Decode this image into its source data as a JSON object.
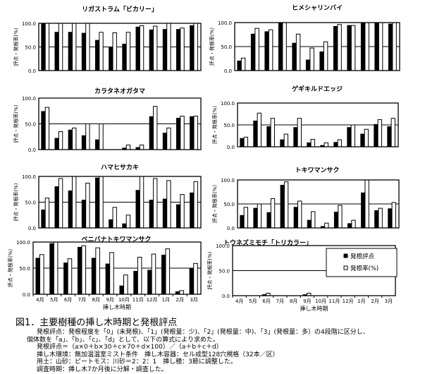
{
  "chart_data": [
    {
      "type": "bar",
      "title": "リガストラム「ビカリー」",
      "ylabel": "評点・発根率(%)",
      "xlabel": "",
      "ylim": [
        0,
        100
      ],
      "yticks": [
        "0.0",
        "50.0",
        "100.0"
      ],
      "categories": [
        "4月",
        "5月",
        "6月",
        "7月",
        "8月",
        "9月",
        "10月",
        "11月",
        "12月",
        "1月",
        "2月",
        "3月"
      ],
      "show_xticks": false,
      "series": [
        {
          "name": "発根評点",
          "values": [
            100,
            81,
            81,
            79,
            64,
            50,
            56,
            92,
            86,
            87,
            87,
            95
          ]
        },
        {
          "name": "発根率(%)",
          "values": [
            100,
            100,
            100,
            100,
            81,
            80,
            81,
            95,
            94,
            100,
            90,
            100
          ]
        }
      ]
    },
    {
      "type": "bar",
      "title": "ヒメシャリンバイ",
      "ylabel": "評点・発根率(%)",
      "xlabel": "",
      "ylim": [
        0,
        100
      ],
      "yticks": [
        "0.0",
        "50.0",
        "100.0"
      ],
      "categories": [
        "4月",
        "5月",
        "6月",
        "7月",
        "8月",
        "9月",
        "10月",
        "11月",
        "12月",
        "1月",
        "2月",
        "3月"
      ],
      "show_xticks": false,
      "series": [
        {
          "name": "発根評点",
          "values": [
            20,
            76,
            81,
            100,
            57,
            22,
            39,
            92,
            94,
            100,
            100,
            97
          ]
        },
        {
          "name": "発根率(%)",
          "values": [
            26,
            88,
            85,
            100,
            76,
            47,
            60,
            96,
            94,
            100,
            100,
            100
          ]
        }
      ]
    },
    {
      "type": "bar",
      "title": "カラタネオガタマ",
      "ylabel": "評点・発根率(%)",
      "xlabel": "",
      "ylim": [
        0,
        100
      ],
      "yticks": [
        "0.0",
        "50.0",
        "100.0"
      ],
      "categories": [
        "4月",
        "5月",
        "6月",
        "7月",
        "8月",
        "9月",
        "10月",
        "11月",
        "12月",
        "1月",
        "2月",
        "3月"
      ],
      "show_xticks": false,
      "series": [
        {
          "name": "発根評点",
          "values": [
            74,
            22,
            38,
            27,
            19,
            0,
            3,
            4,
            64,
            32,
            61,
            64
          ]
        },
        {
          "name": "発根率(%)",
          "values": [
            82,
            35,
            42,
            50,
            50,
            0,
            9,
            9,
            84,
            42,
            65,
            65
          ]
        }
      ]
    },
    {
      "type": "bar",
      "title": "ゲギキルドエッジ",
      "ylabel": "評点・発根率(%)",
      "xlabel": "",
      "ylim": [
        0,
        100
      ],
      "yticks": [
        "0.0",
        "50.0",
        "100.0"
      ],
      "categories": [
        "4月",
        "5月",
        "6月",
        "7月",
        "8月",
        "9月",
        "10月",
        "11月",
        "12月",
        "1月",
        "2月",
        "3月"
      ],
      "show_xticks": false,
      "series": [
        {
          "name": "発根評点",
          "values": [
            19,
            59,
            46,
            16,
            44,
            9,
            3,
            10,
            44,
            29,
            51,
            46
          ]
        },
        {
          "name": "発根率(%)",
          "values": [
            22,
            77,
            65,
            29,
            65,
            17,
            9,
            16,
            50,
            40,
            62,
            65
          ]
        }
      ]
    },
    {
      "type": "bar",
      "title": "ハマヒサカキ",
      "ylabel": "評点・発根率(%)",
      "xlabel": "",
      "ylim": [
        0,
        100
      ],
      "yticks": [
        "0.0",
        "50.0",
        "100.0"
      ],
      "categories": [
        "4月",
        "5月",
        "6月",
        "7月",
        "8月",
        "9月",
        "10月",
        "11月",
        "12月",
        "1月",
        "2月",
        "3月"
      ],
      "show_xticks": false,
      "series": [
        {
          "name": "発根評点",
          "values": [
            35,
            80,
            72,
            54,
            97,
            16,
            8,
            73,
            54,
            56,
            45,
            68
          ]
        },
        {
          "name": "発根率(%)",
          "values": [
            58,
            96,
            100,
            87,
            100,
            40,
            25,
            100,
            96,
            92,
            65,
            90
          ]
        }
      ]
    },
    {
      "type": "bar",
      "title": "トキワマンサク",
      "ylabel": "評点・発根率(%)",
      "xlabel": "",
      "ylim": [
        0,
        100
      ],
      "yticks": [
        "0.0",
        "50.0",
        "100.0"
      ],
      "categories": [
        "4月",
        "5月",
        "6月",
        "7月",
        "8月",
        "9月",
        "10月",
        "11月",
        "12月",
        "1月",
        "2月",
        "3月"
      ],
      "show_xticks": false,
      "series": [
        {
          "name": "発根評点",
          "values": [
            26,
            41,
            32,
            89,
            43,
            16,
            3,
            33,
            9,
            73,
            36,
            40
          ]
        },
        {
          "name": "発根率(%)",
          "values": [
            43,
            50,
            61,
            96,
            56,
            34,
            10,
            47,
            16,
            100,
            41,
            53
          ]
        }
      ]
    },
    {
      "type": "bar",
      "title": "ベニバナトキワマンサク",
      "ylabel": "評点・発根率(%)",
      "xlabel": "挿し木時期",
      "ylim": [
        0,
        100
      ],
      "yticks": [
        "0.0",
        "50.0",
        "100.0"
      ],
      "categories": [
        "4月",
        "5月",
        "6月",
        "7月",
        "8月",
        "9月",
        "10月",
        "11月",
        "12月",
        "1月",
        "2月",
        "3月"
      ],
      "show_xticks": true,
      "series": [
        {
          "name": "発根評点",
          "values": [
            69,
            97,
            60,
            90,
            69,
            58,
            16,
            44,
            46,
            75,
            5,
            49
          ]
        },
        {
          "name": "発根率(%)",
          "values": [
            76,
            100,
            68,
            93,
            89,
            80,
            37,
            71,
            77,
            87,
            7,
            59
          ]
        }
      ]
    },
    {
      "type": "bar",
      "title": "トウネズミモチ「トリカラー」",
      "ylabel": "評点・発根率(%)",
      "xlabel": "挿し木時期",
      "ylim": [
        0,
        100
      ],
      "yticks": [
        "0.0",
        "50.0",
        "100.0"
      ],
      "categories": [
        "4月",
        "5月",
        "6月",
        "7月",
        "8月",
        "9月",
        "10月",
        "11月",
        "12月",
        "1月",
        "2月",
        "3月"
      ],
      "show_xticks": true,
      "legend": "top-right",
      "series": [
        {
          "name": "発根評点",
          "values": [
            0,
            0,
            2,
            0,
            0,
            2,
            0,
            0,
            0,
            0,
            0,
            0
          ]
        },
        {
          "name": "発根率(%)",
          "values": [
            0,
            0,
            5,
            0,
            0,
            5,
            0,
            0,
            0,
            0,
            0,
            0
          ]
        }
      ]
    }
  ],
  "colors": {
    "score": "#000000",
    "rate": "#ffffff",
    "outline": "#000000"
  },
  "caption": {
    "title": "図1．主要樹種の挿し木時期と発根評点",
    "lines": [
      "発根評点：発根程度を「0」(未発根)、「1」(発根量：少)、「2」(発根量：中)、「3」(発根量：多）の4段階に区分し、",
      "個体数を「a」、「b」、「c」、「d」として、以下の算式により求めた。",
      "発根評点＝（a×0＋b×30＋c×70＋d×100）／（a＋b＋c＋d）",
      "挿し木環境：無加温温室ミスト条件　挿し木容器：セル成型128穴規格（32本／区）",
      "用土：山砂：ピートモス：川砂＝2：2：1　挿し穂：3節に調整した。",
      "調査時期：挿し木7か月後に分解・調査した。"
    ]
  }
}
